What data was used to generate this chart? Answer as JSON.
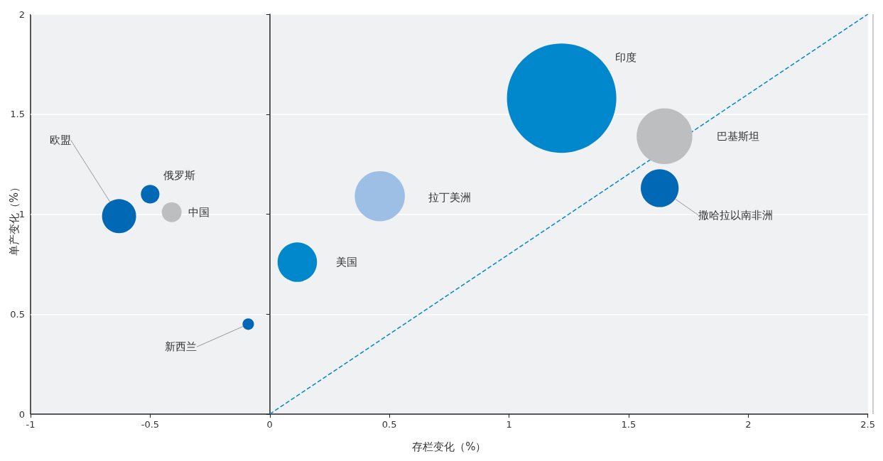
{
  "chart_data": {
    "type": "bubble",
    "xlabel": "存栏变化（%）",
    "ylabel": "单产变化（%）",
    "xlim": [
      -1,
      2.5
    ],
    "xticks": [
      -1,
      -0.5,
      0,
      0.5,
      1,
      1.5,
      2,
      2.5
    ],
    "ylim": [
      0,
      2
    ],
    "yticks": [
      0,
      0.5,
      1,
      1.5,
      2
    ],
    "grid": "y",
    "legend": false,
    "series": [
      {
        "name": "欧盟",
        "color": "#0068b5",
        "x": [
          -0.63
        ],
        "values": [
          0.99
        ],
        "sizes": [
          0.097
        ]
      },
      {
        "name": "俄罗斯",
        "color": "#0068b5",
        "x": [
          -0.5
        ],
        "values": [
          1.1
        ],
        "sizes": [
          0.029
        ]
      },
      {
        "name": "中国",
        "color": "#bcbec0",
        "x": [
          -0.41
        ],
        "values": [
          1.01
        ],
        "sizes": [
          0.033
        ]
      },
      {
        "name": "新西兰",
        "color": "#0068b5",
        "x": [
          -0.09
        ],
        "values": [
          0.45
        ],
        "sizes": [
          0.011
        ]
      },
      {
        "name": "美国",
        "color": "#0087cc",
        "x": [
          0.115
        ],
        "values": [
          0.76
        ],
        "sizes": [
          0.13
        ]
      },
      {
        "name": "拉丁美洲",
        "color": "#9dbfe6",
        "x": [
          0.46
        ],
        "values": [
          1.09
        ],
        "sizes": [
          0.21
        ]
      },
      {
        "name": "印度",
        "color": "#0087cc",
        "x": [
          1.22
        ],
        "values": [
          1.58
        ],
        "sizes": [
          1
        ]
      },
      {
        "name": "巴基斯坦",
        "color": "#bcbec0",
        "x": [
          1.65
        ],
        "values": [
          1.39
        ],
        "sizes": [
          0.26
        ]
      },
      {
        "name": "撒哈拉以南非洲",
        "color": "#0068b5",
        "x": [
          1.63
        ],
        "values": [
          1.13
        ],
        "sizes": [
          0.12
        ]
      },
      {
        "type": "line",
        "color": "#0087cc",
        "line_style": "dashed",
        "marker": "none",
        "x": [
          0,
          2.5
        ],
        "values": [
          0,
          2
        ]
      }
    ]
  }
}
